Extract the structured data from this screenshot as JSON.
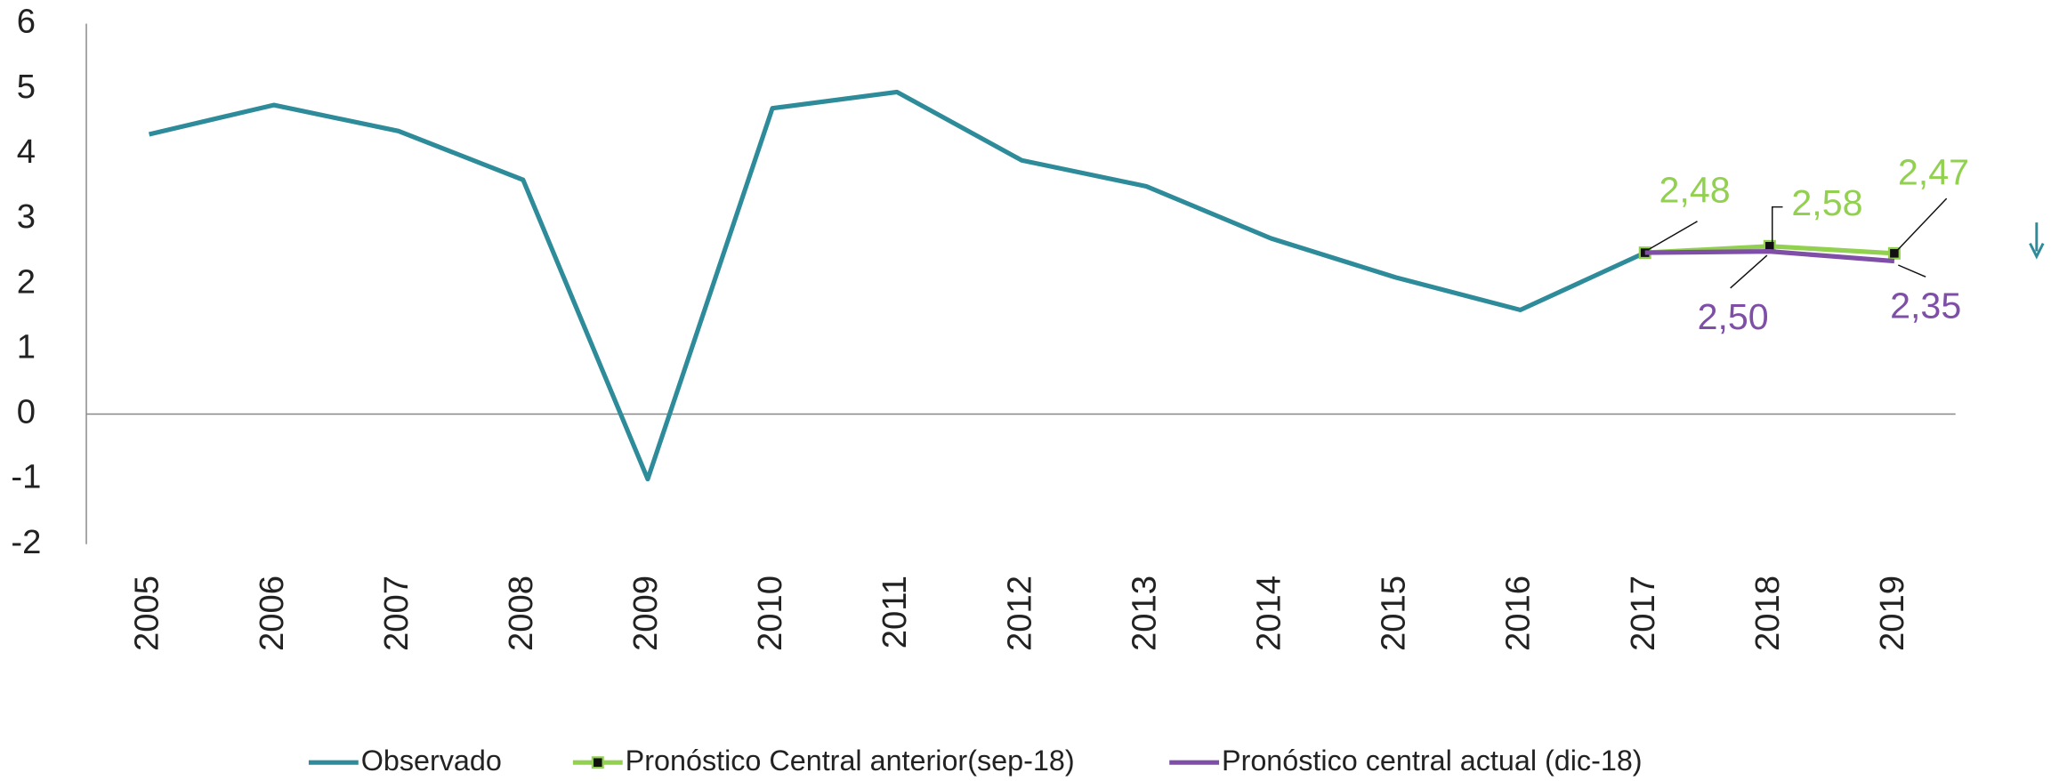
{
  "chart_data": {
    "type": "line",
    "categories": [
      "2005",
      "2006",
      "2007",
      "2008",
      "2009",
      "2010",
      "2011",
      "2012",
      "2013",
      "2014",
      "2015",
      "2016",
      "2017",
      "2018",
      "2019"
    ],
    "series": [
      {
        "name": "Observado",
        "color": "#2e8b9a",
        "values": [
          4.3,
          4.75,
          4.35,
          3.6,
          -1.0,
          4.7,
          4.95,
          3.9,
          3.5,
          2.7,
          2.1,
          1.6,
          2.48,
          null,
          null
        ]
      },
      {
        "name": "Pronóstico Central anterior(sep-18)",
        "color": "#92d050",
        "marker": "square",
        "values": [
          null,
          null,
          null,
          null,
          null,
          null,
          null,
          null,
          null,
          null,
          null,
          null,
          2.48,
          2.58,
          2.47
        ],
        "value_labels": [
          null,
          null,
          null,
          null,
          null,
          null,
          null,
          null,
          null,
          null,
          null,
          null,
          "2,48",
          "2,58",
          "2,47"
        ]
      },
      {
        "name": "Pronóstico central actual (dic-18)",
        "color": "#7f4fa8",
        "values": [
          null,
          null,
          null,
          null,
          null,
          null,
          null,
          null,
          null,
          null,
          null,
          null,
          2.48,
          2.5,
          2.35
        ],
        "value_labels": [
          null,
          null,
          null,
          null,
          null,
          null,
          null,
          null,
          null,
          null,
          null,
          null,
          null,
          "2,50",
          "2,35"
        ]
      }
    ],
    "ylim": [
      -2,
      6
    ],
    "yticks": [
      -2,
      -1,
      0,
      1,
      2,
      3,
      4,
      5,
      6
    ],
    "legend": "bottom"
  }
}
